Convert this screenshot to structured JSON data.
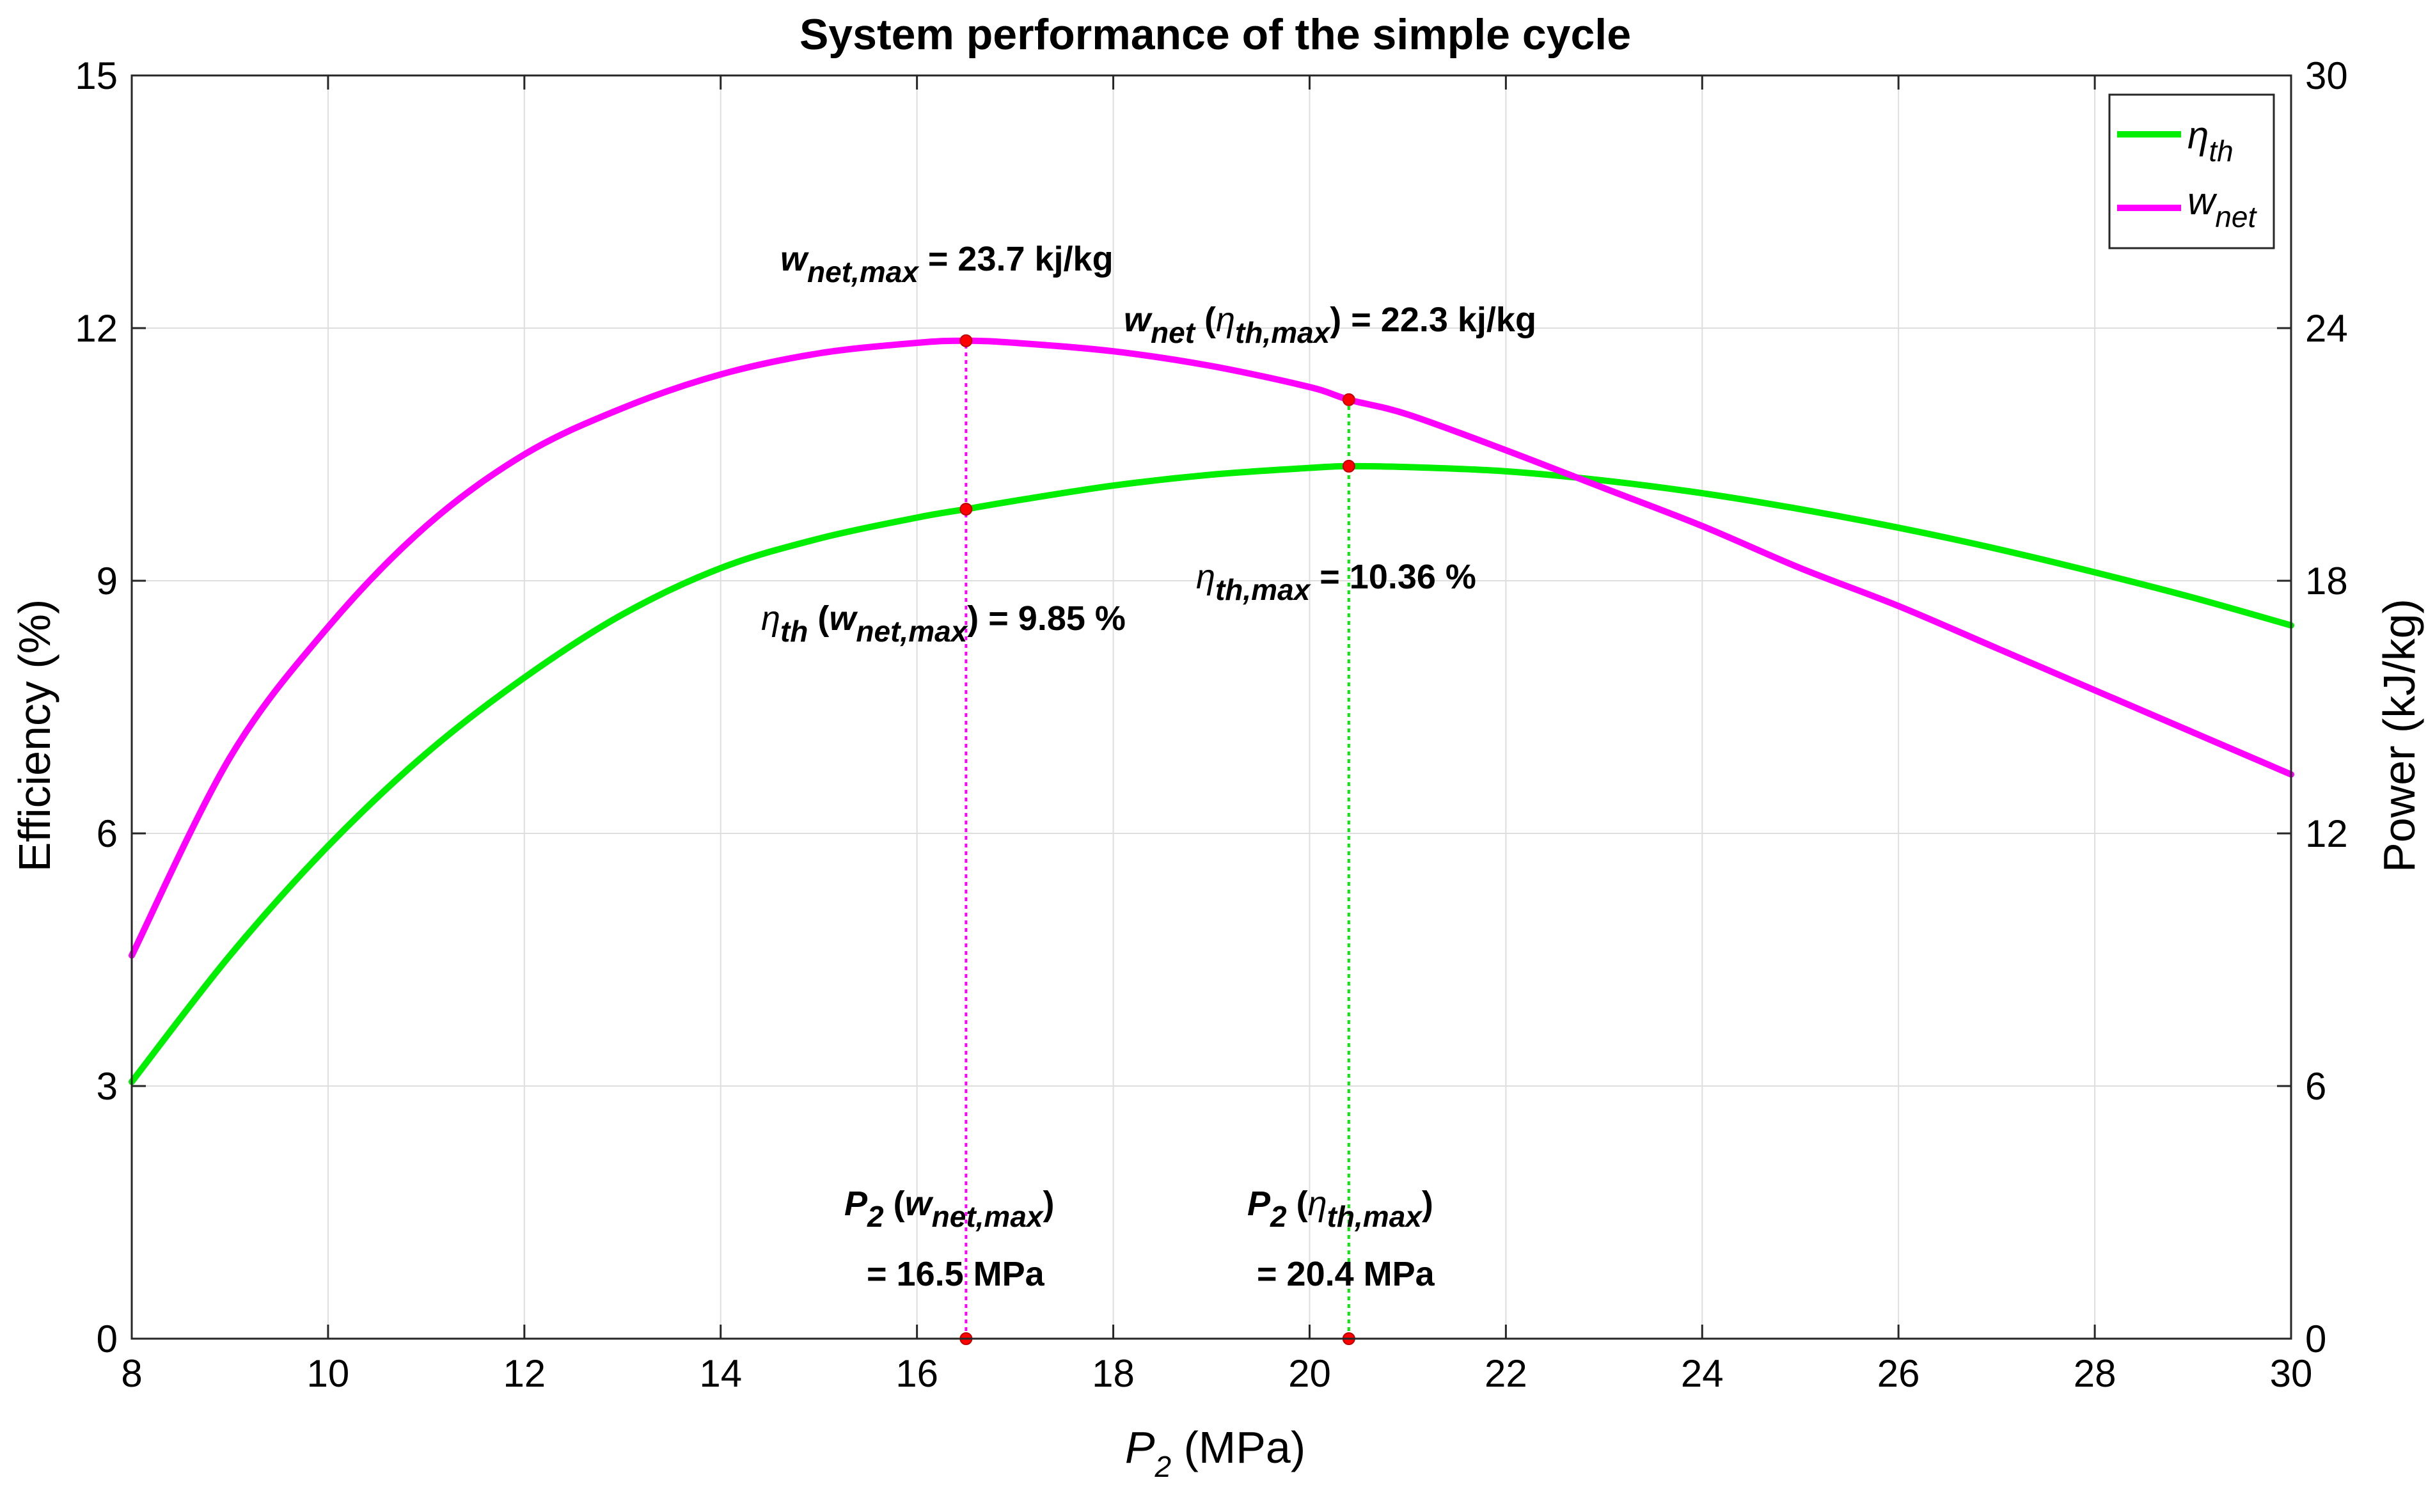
{
  "chart_data": {
    "type": "line",
    "title": "System performance of the simple cycle",
    "xlabel": {
      "var": "P",
      "sub": "2",
      "unit": " (MPa)"
    },
    "ylabel_left": "Efficiency (%)",
    "ylabel_right": "Power (kJ/kg)",
    "xlim": [
      8,
      30
    ],
    "ylim_left": [
      0,
      15
    ],
    "ylim_right": [
      0,
      30
    ],
    "xticks": [
      "8",
      "10",
      "12",
      "14",
      "16",
      "18",
      "20",
      "22",
      "24",
      "26",
      "28",
      "30"
    ],
    "yticks_left": [
      "0",
      "3",
      "6",
      "9",
      "12",
      "15"
    ],
    "yticks_right": [
      "0",
      "6",
      "12",
      "18",
      "24",
      "30"
    ],
    "grid": true,
    "legend_position": "top-right",
    "colors": {
      "eta": "#00ee00",
      "wnet": "#ff00ff",
      "marker": "#ff0000"
    },
    "x": [
      8,
      9,
      10,
      11,
      12,
      13,
      14,
      15,
      16,
      16.5,
      17,
      18,
      19,
      20,
      20.4,
      21,
      22,
      23,
      24,
      25,
      26,
      27,
      28,
      29,
      30
    ],
    "series": [
      {
        "name": "eta_th",
        "legend": {
          "sym": "η",
          "sub": "th"
        },
        "axis": "left",
        "values": [
          3.05,
          4.55,
          5.85,
          6.95,
          7.85,
          8.6,
          9.15,
          9.5,
          9.75,
          9.85,
          9.95,
          10.13,
          10.26,
          10.34,
          10.36,
          10.35,
          10.3,
          10.19,
          10.04,
          9.85,
          9.63,
          9.38,
          9.1,
          8.8,
          8.47
        ]
      },
      {
        "name": "w_net",
        "legend": {
          "sym": "w",
          "sub": "net"
        },
        "axis": "right",
        "values": [
          9.1,
          13.8,
          16.9,
          19.3,
          21.0,
          22.1,
          22.9,
          23.4,
          23.65,
          23.7,
          23.65,
          23.45,
          23.1,
          22.6,
          22.3,
          21.95,
          21.1,
          20.2,
          19.3,
          18.3,
          17.4,
          16.4,
          15.4,
          14.4,
          13.4
        ]
      }
    ],
    "markers": [
      {
        "x": 16.5,
        "axis": "right",
        "y": 23.7
      },
      {
        "x": 16.5,
        "axis": "left",
        "y": 9.85
      },
      {
        "x": 16.5,
        "axis": "left",
        "y": 0
      },
      {
        "x": 20.4,
        "axis": "right",
        "y": 22.3
      },
      {
        "x": 20.4,
        "axis": "left",
        "y": 10.36
      },
      {
        "x": 20.4,
        "axis": "left",
        "y": 0
      }
    ],
    "vlines": [
      {
        "x": 16.5,
        "color": "#ff00ff",
        "axis": "right",
        "top": 23.7
      },
      {
        "x": 20.4,
        "color": "#00ee00",
        "axis": "right",
        "top": 22.3
      }
    ],
    "annotations": {
      "wnet_max": {
        "sym": "w",
        "sub": "net,max",
        "text": " = 23.7 kj/kg"
      },
      "wnet_at_eta_max": {
        "sym": "w",
        "sub": "net",
        "open": " (",
        "sym2": "η",
        "sub2": "th,max",
        "text": ") = 22.3 kj/kg"
      },
      "eta_at_wnet_max": {
        "sym": "η",
        "sub": "th",
        "open": " (",
        "sym2": "w",
        "sub2": "net,max",
        "text": ") = 9.85 %"
      },
      "eta_max": {
        "sym": "η",
        "sub": "th,max",
        "text": " = 10.36 %"
      },
      "p2_wnet_max": {
        "sym": "P",
        "sub": "2",
        "open": " (",
        "sym2": "w",
        "sub2": "net,max",
        "close": ")",
        "value": "= 16.5 MPa"
      },
      "p2_eta_max": {
        "sym": "P",
        "sub": "2",
        "open": " (",
        "sym2": "η",
        "sub2": "th,max",
        "close": ")",
        "value": "= 20.4 MPa"
      }
    }
  }
}
